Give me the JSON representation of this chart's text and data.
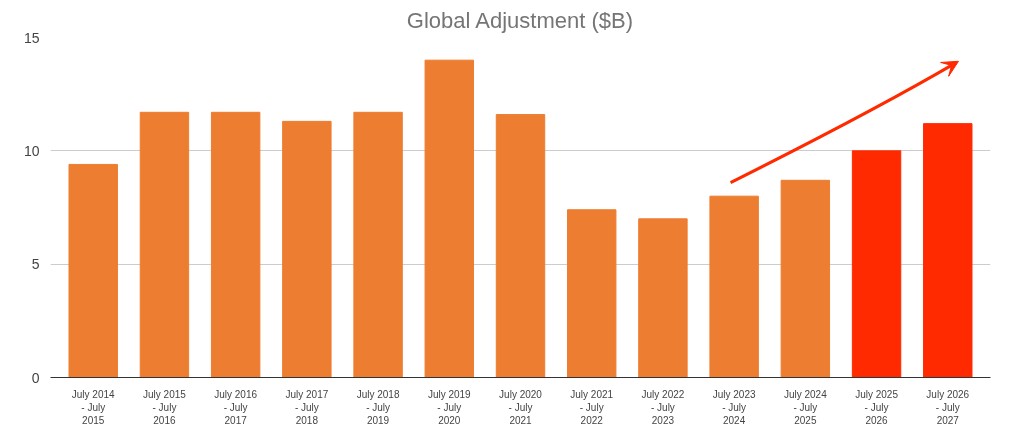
{
  "chart_data": {
    "type": "bar",
    "title": "Global Adjustment ($B)",
    "categories": [
      "July 2014\n- July\n2015",
      "July 2015\n- July\n2016",
      "July 2016\n- July\n2017",
      "July 2017\n- July\n2018",
      "July 2018\n- July\n2019",
      "July 2019\n- July\n2020",
      "July 2020\n- July\n2021",
      "July 2021\n- July\n2022",
      "July 2022\n- July\n2023",
      "July 2023\n- July\n2024",
      "July 2024\n- July\n2025",
      "July 2025\n- July\n2026",
      "July 2026\n- July\n2027"
    ],
    "values": [
      9.4,
      11.7,
      11.7,
      11.3,
      11.7,
      14.0,
      11.6,
      7.4,
      7.0,
      8.0,
      8.7,
      10.0,
      11.2
    ],
    "colors": [
      "#ed7d31",
      "#ed7d31",
      "#ed7d31",
      "#ed7d31",
      "#ed7d31",
      "#ed7d31",
      "#ed7d31",
      "#ed7d31",
      "#ed7d31",
      "#ed7d31",
      "#ed7d31",
      "#ff2a00",
      "#ff2a00"
    ],
    "ylim": [
      0,
      15
    ],
    "yticks": [
      0,
      5,
      10,
      15
    ],
    "grid": "y"
  }
}
